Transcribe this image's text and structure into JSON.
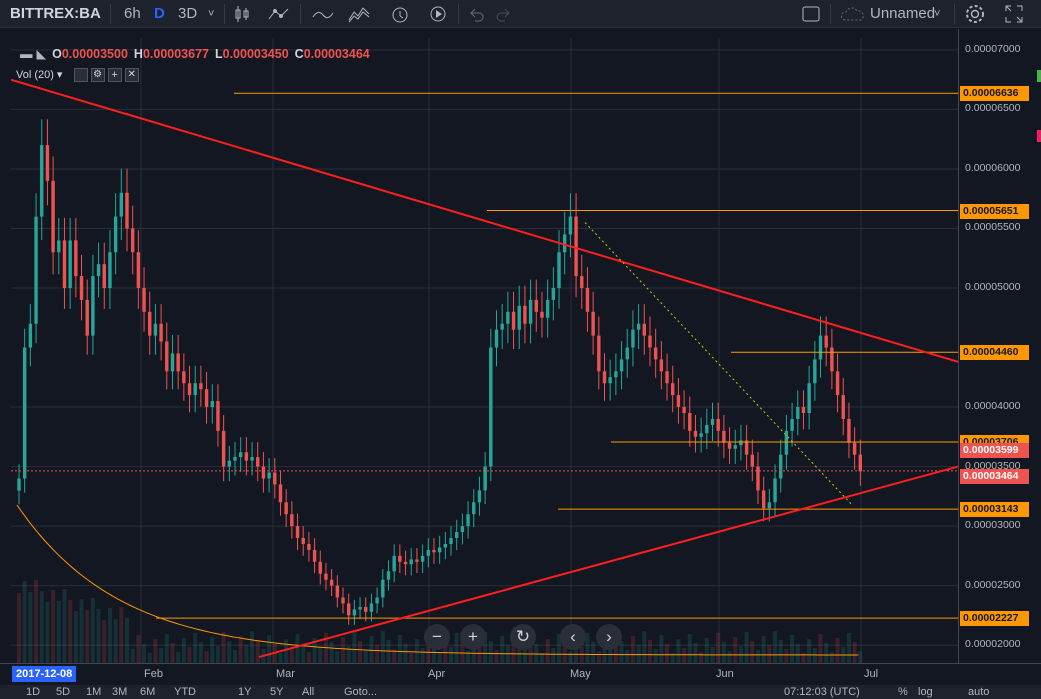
{
  "toolbar": {
    "symbol": "BITTREX:BA",
    "interval": "6h",
    "interval_d": "D",
    "interval_3d": "3D",
    "chevron": "˅",
    "layout_name": "Unnamed",
    "icons": [
      "candles-icon",
      "indicators-icon",
      "line-tool-icon",
      "compare-icon",
      "alert-icon",
      "replay-icon",
      "undo-icon",
      "redo-icon",
      "layout-icon",
      "cloud-icon",
      "settings-icon",
      "fullscreen-icon"
    ]
  },
  "legend": {
    "o_key": "O",
    "o": "0.00003500",
    "h_key": "H",
    "h": "0.00003677",
    "l_key": "L",
    "l": "0.00003450",
    "c_key": "C",
    "c": "0.00003464",
    "volume": "Vol (20)"
  },
  "price_scale": {
    "ticks": [
      "0.00007000",
      "0.00006500",
      "0.00006000",
      "0.00005500",
      "0.00005000",
      "0.00004000",
      "0.00003500",
      "0.00003000",
      "0.00002500",
      "0.00002000"
    ],
    "tick_values": [
      7e-05,
      6.5e-05,
      6e-05,
      5.5e-05,
      5e-05,
      4e-05,
      3.5e-05,
      3e-05,
      2.5e-05,
      2e-05
    ],
    "levels": [
      {
        "label": "0.00006636",
        "value": 6.636e-05
      },
      {
        "label": "0.00005651",
        "value": 5.651e-05
      },
      {
        "label": "0.00004460",
        "value": 4.46e-05
      },
      {
        "label": "0.00003706",
        "value": 3.706e-05
      },
      {
        "label": "0.00003143",
        "value": 3.143e-05
      },
      {
        "label": "0.00002227",
        "value": 2.227e-05
      }
    ],
    "current": {
      "label": "0.00003599",
      "value": 3.599e-05
    },
    "last": {
      "label": "0.00003464",
      "value": 3.464e-05
    }
  },
  "time_axis": {
    "start": "2017-12-08",
    "labels": [
      "Feb",
      "Mar",
      "Apr",
      "May",
      "Jun",
      "Jul"
    ]
  },
  "nav_buttons": {
    "zoom_out": "−",
    "zoom_in": "+",
    "reset": "↻",
    "left": "‹",
    "right": "›"
  },
  "bottom_bar": [
    "1D",
    "5D",
    "1M",
    "3M",
    "6M",
    "YTD",
    "1Y",
    "5Y",
    "All",
    "Goto...",
    "07:12:03 (UTC)",
    "%",
    "log",
    "auto"
  ],
  "colors": {
    "up": "#26a69a",
    "down": "#ef5350",
    "level": "#ff9800",
    "trend": "#ff1e1e",
    "bg": "#131722"
  },
  "chart_data": {
    "type": "candlestick",
    "title": "BITTREX:BA",
    "ohlc_last": {
      "open": 3.5e-05,
      "high": 3.677e-05,
      "low": 3.45e-05,
      "close": 3.464e-05
    },
    "x_start": "2017-12-08",
    "x_end": "2018-06-24",
    "ylim": [
      1.85e-05,
      7.1e-05
    ],
    "closes": [
      3.4e-05,
      4.5e-05,
      4.7e-05,
      5.6e-05,
      6.2e-05,
      5.9e-05,
      5.3e-05,
      5.4e-05,
      5e-05,
      5.4e-05,
      5.1e-05,
      4.9e-05,
      4.6e-05,
      5.1e-05,
      5.2e-05,
      5e-05,
      5.3e-05,
      5.6e-05,
      5.8e-05,
      5.5e-05,
      5.3e-05,
      5e-05,
      4.8e-05,
      4.6e-05,
      4.7e-05,
      4.55e-05,
      4.3e-05,
      4.45e-05,
      4.3e-05,
      4.2e-05,
      4.1e-05,
      4.2e-05,
      4.15e-05,
      4e-05,
      4.05e-05,
      3.8e-05,
      3.5e-05,
      3.55e-05,
      3.58e-05,
      3.62e-05,
      3.55e-05,
      3.58e-05,
      3.5e-05,
      3.4e-05,
      3.45e-05,
      3.35e-05,
      3.2e-05,
      3.1e-05,
      3e-05,
      2.9e-05,
      2.85e-05,
      2.8e-05,
      2.7e-05,
      2.6e-05,
      2.55e-05,
      2.5e-05,
      2.4e-05,
      2.35e-05,
      2.25e-05,
      2.3e-05,
      2.32e-05,
      2.28e-05,
      2.35e-05,
      2.4e-05,
      2.55e-05,
      2.62e-05,
      2.75e-05,
      2.7e-05,
      2.68e-05,
      2.72e-05,
      2.7e-05,
      2.75e-05,
      2.8e-05,
      2.78e-05,
      2.82e-05,
      2.85e-05,
      2.9e-05,
      2.95e-05,
      3e-05,
      3.1e-05,
      3.2e-05,
      3.3e-05,
      3.5e-05,
      4.5e-05,
      4.65e-05,
      4.7e-05,
      4.8e-05,
      4.65e-05,
      4.85e-05,
      4.7e-05,
      4.9e-05,
      4.8e-05,
      4.75e-05,
      4.9e-05,
      5e-05,
      5.3e-05,
      5.45e-05,
      5.6e-05,
      5.1e-05,
      5e-05,
      4.8e-05,
      4.6e-05,
      4.3e-05,
      4.2e-05,
      4.25e-05,
      4.3e-05,
      4.4e-05,
      4.5e-05,
      4.65e-05,
      4.7e-05,
      4.6e-05,
      4.5e-05,
      4.4e-05,
      4.3e-05,
      4.2e-05,
      4.1e-05,
      4e-05,
      3.95e-05,
      3.8e-05,
      3.75e-05,
      3.78e-05,
      3.85e-05,
      3.9e-05,
      3.8e-05,
      3.7e-05,
      3.65e-05,
      3.68e-05,
      3.72e-05,
      3.6e-05,
      3.5e-05,
      3.3e-05,
      3.15e-05,
      3.2e-05,
      3.4e-05,
      3.6e-05,
      3.8e-05,
      3.9e-05,
      4e-05,
      3.95e-05,
      4.2e-05,
      4.4e-05,
      4.6e-05,
      4.5e-05,
      4.3e-05,
      4.1e-05,
      3.9e-05,
      3.7e-05,
      3.6e-05,
      3.46e-05
    ]
  }
}
